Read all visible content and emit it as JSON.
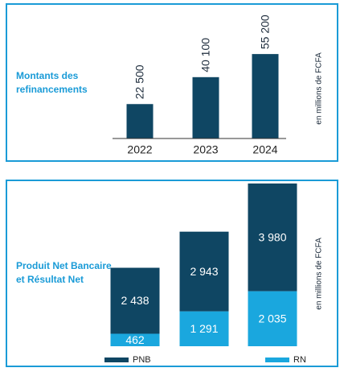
{
  "chart_data": [
    {
      "type": "bar",
      "title": "Montants des refinancements",
      "y_label": "en millions de FCFA",
      "categories": [
        "2022",
        "2023",
        "2024"
      ],
      "values": [
        22500,
        40100,
        55200
      ],
      "value_labels": [
        "22 500",
        "40 100",
        "55 200"
      ],
      "color": "#0f4663",
      "ylim": [
        0,
        60000
      ]
    },
    {
      "type": "stacked_bar",
      "title": "Produit Net Bancaire et Résultat Net",
      "y_label": "en millions de FCFA",
      "categories": [
        null,
        null,
        null
      ],
      "ylim": [
        0,
        6100
      ],
      "legend": "bottom",
      "series": [
        {
          "name": "RN",
          "color": "#1aa7de",
          "values": [
            462,
            1291,
            2035
          ],
          "value_labels": [
            "462",
            "1 291",
            "2 035"
          ]
        },
        {
          "name": "PNB",
          "color": "#0f4663",
          "values": [
            2438,
            2943,
            3980
          ],
          "value_labels": [
            "2 438",
            "2 943",
            "3 980"
          ]
        }
      ]
    }
  ]
}
